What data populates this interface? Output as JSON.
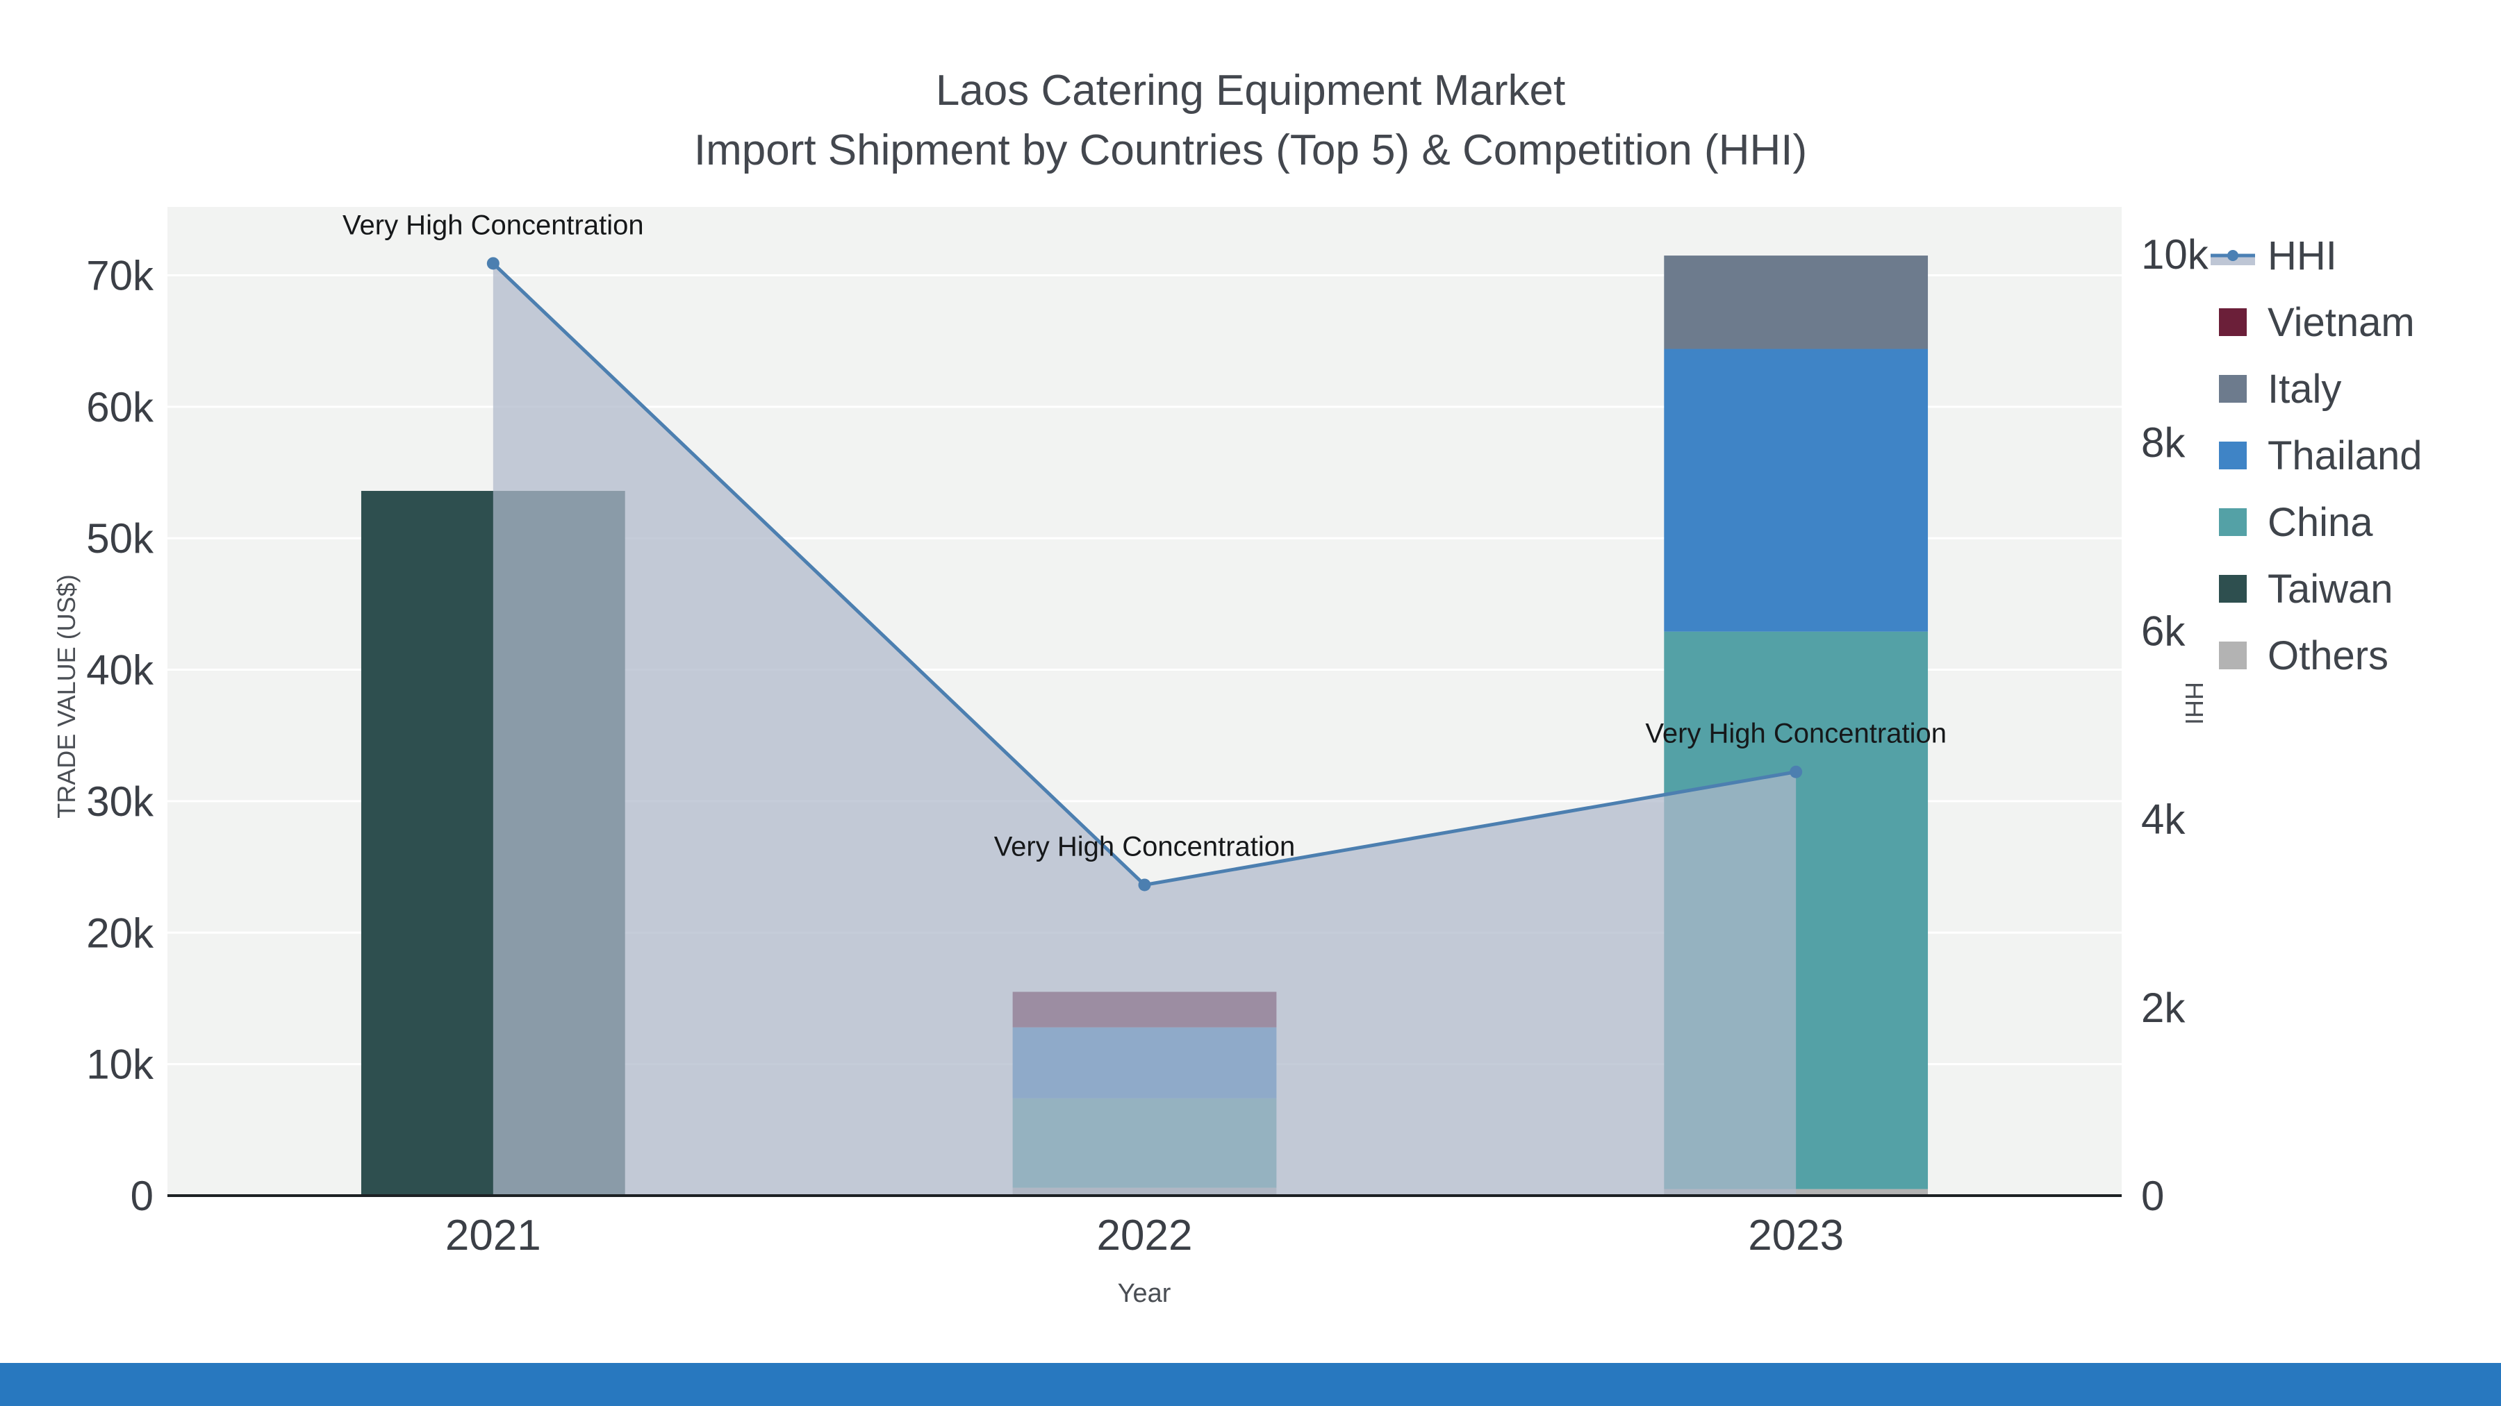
{
  "title": {
    "line1": "Laos Catering Equipment Market",
    "line2": "Import Shipment by Countries (Top 5) & Competition (HHI)"
  },
  "colors": {
    "plot_bg": "#f2f3f2",
    "grid": "#ffffff",
    "axis_line": "#1d2124",
    "text_primary": "#3b3f46",
    "text_secondary": "#4a4e54",
    "footer_bar": "#2878bf"
  },
  "legend": {
    "items": [
      {
        "label": "HHI",
        "type": "line",
        "color": "#4b80b4"
      },
      {
        "label": "Vietnam",
        "type": "swatch",
        "color": "#6b1f39"
      },
      {
        "label": "Italy",
        "type": "swatch",
        "color": "#6d7b8d"
      },
      {
        "label": "Thailand",
        "type": "swatch",
        "color": "#3f84c6"
      },
      {
        "label": "China",
        "type": "swatch",
        "color": "#54a1a6"
      },
      {
        "label": "Taiwan",
        "type": "swatch",
        "color": "#2e4f4f"
      },
      {
        "label": "Others",
        "type": "swatch",
        "color": "#b3b3b3"
      }
    ]
  },
  "chart_data": {
    "type": "bar+line",
    "title": "Laos Catering Equipment Market — Import Shipment by Countries (Top 5) & Competition (HHI)",
    "categories": [
      "2021",
      "2022",
      "2023"
    ],
    "bar_series": [
      {
        "name": "Others",
        "color": "#b3b3b3",
        "values": [
          0,
          600,
          500
        ]
      },
      {
        "name": "Taiwan",
        "color": "#2e4f4f",
        "values": [
          53600,
          0,
          0
        ]
      },
      {
        "name": "China",
        "color": "#54a1a6",
        "values": [
          0,
          6800,
          42400
        ]
      },
      {
        "name": "Thailand",
        "color": "#3f84c6",
        "values": [
          0,
          5400,
          21500
        ]
      },
      {
        "name": "Italy",
        "color": "#6d7b8d",
        "values": [
          0,
          0,
          7100
        ]
      },
      {
        "name": "Vietnam",
        "color": "#6b1f39",
        "values": [
          0,
          2700,
          0
        ]
      }
    ],
    "line_series": {
      "name": "HHI",
      "color": "#4c7fb0",
      "fill": "rgba(174,184,203,0.72)",
      "values": [
        9900,
        3300,
        4500
      ]
    },
    "annotations": [
      {
        "category": "2021",
        "text": "Very High Concentration"
      },
      {
        "category": "2022",
        "text": "Very High Concentration"
      },
      {
        "category": "2023",
        "text": "Very High Concentration"
      }
    ],
    "axes": {
      "x": {
        "title": "Year"
      },
      "y_left": {
        "title": "TRADE VALUE (US$)",
        "max": 75200,
        "ticks": [
          {
            "v": 0,
            "label": "0"
          },
          {
            "v": 10000,
            "label": "10k"
          },
          {
            "v": 20000,
            "label": "20k"
          },
          {
            "v": 30000,
            "label": "30k"
          },
          {
            "v": 40000,
            "label": "40k"
          },
          {
            "v": 50000,
            "label": "50k"
          },
          {
            "v": 60000,
            "label": "60k"
          },
          {
            "v": 70000,
            "label": "70k"
          }
        ]
      },
      "y_right": {
        "title": "HHI",
        "max": 10500,
        "ticks": [
          {
            "v": 0,
            "label": "0"
          },
          {
            "v": 2000,
            "label": "2k"
          },
          {
            "v": 4000,
            "label": "4k"
          },
          {
            "v": 6000,
            "label": "6k"
          },
          {
            "v": 8000,
            "label": "8k"
          },
          {
            "v": 10000,
            "label": "10k"
          }
        ]
      }
    },
    "legend_position": "right",
    "grid": true
  }
}
